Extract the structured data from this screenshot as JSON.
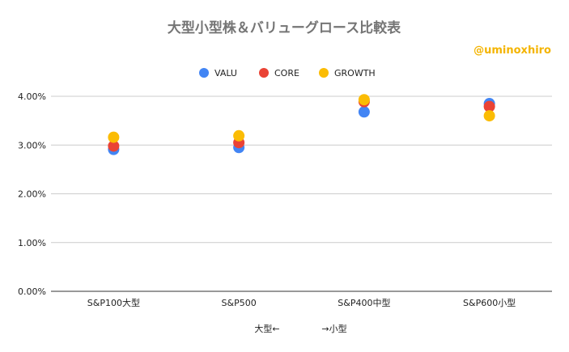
{
  "chart_data": {
    "type": "scatter",
    "title": "大型小型株＆バリューグロース比較表",
    "watermark": "@uminoxhiro",
    "categories": [
      "S&P100大型",
      "S&P500",
      "S&P400中型",
      "S&P600小型"
    ],
    "series": [
      {
        "name": "VALU",
        "color": "#4285f4",
        "values": [
          2.91,
          2.95,
          3.68,
          3.85
        ]
      },
      {
        "name": "CORE",
        "color": "#ea4335",
        "values": [
          2.98,
          3.05,
          3.89,
          3.79
        ]
      },
      {
        "name": "GROWTH",
        "color": "#fbbc04",
        "values": [
          3.16,
          3.19,
          3.93,
          3.6
        ]
      }
    ],
    "ylim": [
      0,
      4
    ],
    "yticks": [
      0,
      1,
      2,
      3,
      4
    ],
    "ytick_labels": [
      "0.00%",
      "1.00%",
      "2.00%",
      "3.00%",
      "4.00%"
    ],
    "xlabel_left": "大型←",
    "xlabel_right": "→小型",
    "ylabel": "",
    "legend_position": "top-center",
    "grid": true
  }
}
